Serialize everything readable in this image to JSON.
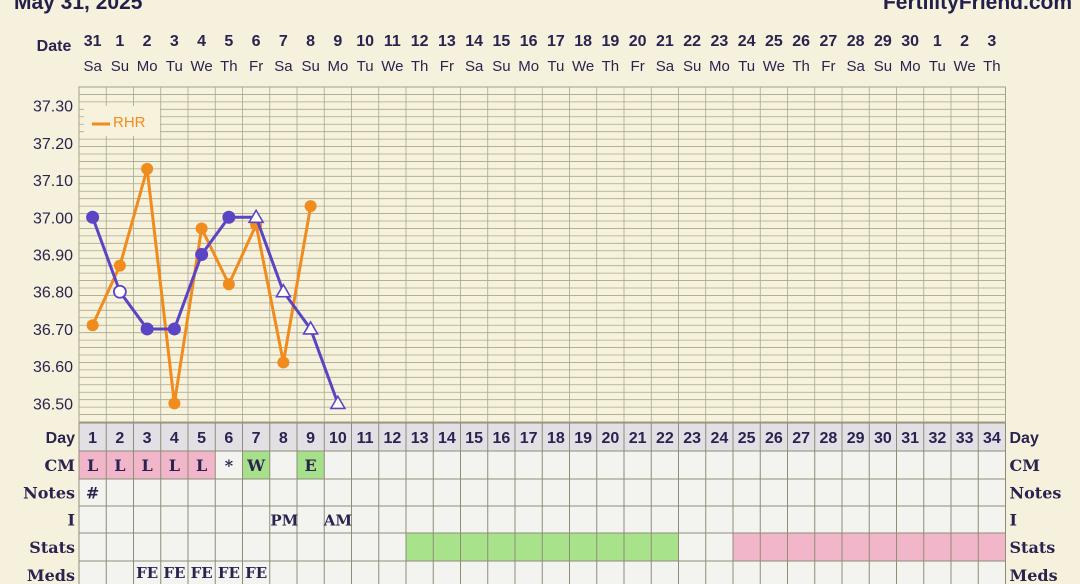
{
  "header": {
    "date": "May 31, 2025",
    "site": "FertilityFriend.com"
  },
  "row_labels": {
    "date": "Date",
    "day": "Day",
    "cm": "CM",
    "notes": "Notes",
    "i": "I",
    "stats": "Stats",
    "meds": "Meds"
  },
  "dates": [
    "31",
    "1",
    "2",
    "3",
    "4",
    "5",
    "6",
    "7",
    "8",
    "9",
    "10",
    "11",
    "12",
    "13",
    "14",
    "15",
    "16",
    "17",
    "18",
    "19",
    "20",
    "21",
    "22",
    "23",
    "24",
    "25",
    "26",
    "27",
    "28",
    "29",
    "30",
    "1",
    "2",
    "3"
  ],
  "weekdays": [
    "Sa",
    "Su",
    "Mo",
    "Tu",
    "We",
    "Th",
    "Fr",
    "Sa",
    "Su",
    "Mo",
    "Tu",
    "We",
    "Th",
    "Fr",
    "Sa",
    "Su",
    "Mo",
    "Tu",
    "We",
    "Th",
    "Fr",
    "Sa",
    "Su",
    "Mo",
    "Tu",
    "We",
    "Th",
    "Fr",
    "Sa",
    "Su",
    "Mo",
    "Tu",
    "We",
    "Th"
  ],
  "days": [
    "1",
    "2",
    "3",
    "4",
    "5",
    "6",
    "7",
    "8",
    "9",
    "10",
    "11",
    "12",
    "13",
    "14",
    "15",
    "16",
    "17",
    "18",
    "19",
    "20",
    "21",
    "22",
    "23",
    "24",
    "25",
    "26",
    "27",
    "28",
    "29",
    "30",
    "31",
    "32",
    "33",
    "34"
  ],
  "cm": [
    "L",
    "L",
    "L",
    "L",
    "L",
    "*",
    "W",
    "",
    "E",
    "",
    "",
    "",
    "",
    "",
    "",
    "",
    "",
    "",
    "",
    "",
    "",
    "",
    "",
    "",
    "",
    "",
    "",
    "",
    "",
    "",
    "",
    "",
    "",
    ""
  ],
  "notes": [
    "#",
    "",
    "",
    "",
    "",
    "",
    "",
    "",
    "",
    "",
    "",
    "",
    "",
    "",
    "",
    "",
    "",
    "",
    "",
    "",
    "",
    "",
    "",
    "",
    "",
    "",
    "",
    "",
    "",
    "",
    "",
    "",
    "",
    ""
  ],
  "intercourse": [
    "",
    "",
    "",
    "",
    "",
    "",
    "",
    "PM",
    "",
    "AM",
    "",
    "",
    "",
    "",
    "",
    "",
    "",
    "",
    "",
    "",
    "",
    "",
    "",
    "",
    "",
    "",
    "",
    "",
    "",
    "",
    "",
    "",
    "",
    ""
  ],
  "meds": [
    "",
    "",
    "FE",
    "FE",
    "FE",
    "FE",
    "FE",
    "",
    "",
    "",
    "",
    "",
    "",
    "",
    "",
    "",
    "",
    "",
    "",
    "",
    "",
    "",
    "",
    "",
    "",
    "",
    "",
    "",
    "",
    "",
    "",
    "",
    "",
    ""
  ],
  "colors": {
    "temp": "#5b45c4",
    "rhr": "#f08c1e",
    "cm_pink": "#f2b6cb",
    "cm_green": "#a6e08a",
    "stats_green": "#a8e38c",
    "stats_pink": "#f2b6cb"
  },
  "chart_data": {
    "type": "line",
    "ylim": [
      36.45,
      37.35
    ],
    "yticks": [
      "37.30",
      "37.20",
      "37.10",
      "37.00",
      "36.90",
      "36.80",
      "36.70",
      "36.60",
      "36.50"
    ],
    "legend": {
      "label": "RHR",
      "position": "top-left"
    },
    "series": [
      {
        "values": [
          37.0,
          36.8,
          36.7,
          36.7,
          36.9,
          37.0,
          37.0,
          36.8,
          36.7,
          36.5
        ],
        "markers": [
          "filled",
          "open",
          "filled",
          "filled",
          "filled",
          "filled",
          "triangle",
          "triangle",
          "triangle",
          "triangle"
        ]
      },
      {
        "name": "RHR",
        "values": [
          36.71,
          36.87,
          37.13,
          36.5,
          36.97,
          36.82,
          36.98,
          36.61,
          37.03
        ]
      }
    ],
    "cm_colors": [
      "pink",
      "pink",
      "pink",
      "pink",
      "pink",
      "none",
      "green",
      "none",
      "green"
    ],
    "stats_bands": [
      {
        "from_day": 13,
        "to_day": 22,
        "color": "green"
      },
      {
        "from_day": 25,
        "to_day": 34,
        "color": "pink"
      }
    ]
  }
}
